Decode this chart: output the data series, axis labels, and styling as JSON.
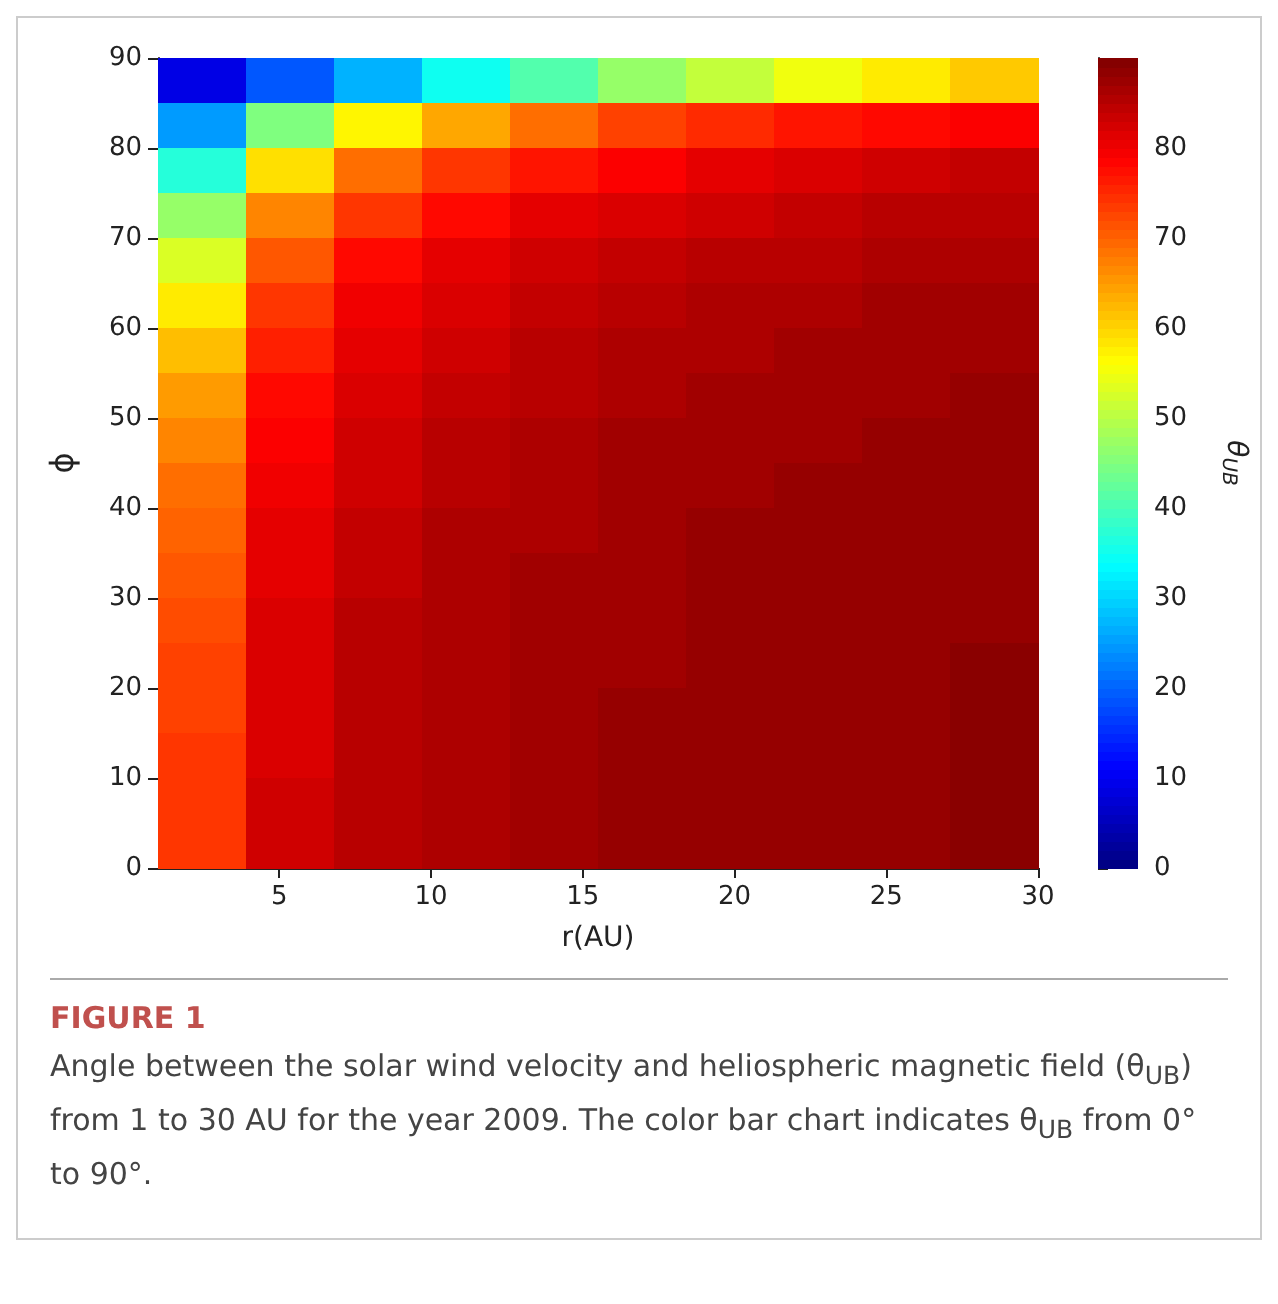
{
  "chart_data": {
    "type": "heatmap",
    "xlabel": "r(AU)",
    "ylabel": "ϕ",
    "clabel": "θ$_{UB}$",
    "annotations": [
      "FIGURE 1",
      "Angle between the solar wind velocity and heliospheric magnetic field (θ$_{UB}$) from 1 to 30 AU for the year 2009. The color bar chart indicates θ$_{UB}$ from 0° to 90°."
    ],
    "xlim": [
      1,
      30
    ],
    "xticks": [
      5,
      10,
      15,
      20,
      25,
      30
    ],
    "ylim": [
      0,
      90
    ],
    "yticks": [
      0,
      10,
      20,
      30,
      40,
      50,
      60,
      70,
      80,
      90
    ],
    "clim": [
      0,
      90
    ],
    "cticks": [
      0,
      10,
      20,
      30,
      40,
      50,
      60,
      70,
      80
    ],
    "colors": [
      "#00007f",
      "#0000ff",
      "#007fff",
      "#00ffff",
      "#7fff7f",
      "#ffff00",
      "#ff7f00",
      "#ff0000",
      "#7f0000"
    ],
    "grid": false,
    "cells": [
      [
        9,
        19,
        27,
        35,
        41,
        47,
        51,
        55,
        58,
        61
      ],
      [
        25,
        45,
        57,
        64,
        69,
        73,
        75,
        77,
        78,
        79
      ],
      [
        37,
        59,
        69,
        74,
        77,
        79,
        81,
        82,
        83,
        84
      ],
      [
        47,
        67,
        74,
        78,
        81,
        82,
        83,
        84,
        85,
        85
      ],
      [
        53,
        71,
        78,
        81,
        83,
        84,
        85,
        85,
        86,
        86
      ],
      [
        58,
        74,
        80,
        82,
        84,
        85,
        86,
        86,
        87,
        87
      ],
      [
        62,
        76,
        81,
        83,
        85,
        86,
        86,
        87,
        87,
        87
      ],
      [
        65,
        78,
        82,
        84,
        85,
        86,
        87,
        87,
        87,
        88
      ],
      [
        67,
        79,
        83,
        85,
        86,
        87,
        87,
        87,
        88,
        88
      ],
      [
        69,
        80,
        83,
        85,
        86,
        87,
        87,
        88,
        88,
        88
      ],
      [
        70,
        81,
        84,
        86,
        86,
        87,
        88,
        88,
        88,
        88
      ],
      [
        71,
        81,
        84,
        86,
        87,
        87,
        88,
        88,
        88,
        88
      ],
      [
        72,
        82,
        85,
        86,
        87,
        87,
        88,
        88,
        88,
        88
      ],
      [
        73,
        82,
        85,
        86,
        87,
        87,
        88,
        88,
        88,
        89
      ],
      [
        73,
        82,
        85,
        86,
        87,
        88,
        88,
        88,
        88,
        89
      ],
      [
        74,
        82,
        85,
        86,
        87,
        88,
        88,
        88,
        88,
        89
      ],
      [
        74,
        83,
        85,
        86,
        87,
        88,
        88,
        88,
        88,
        89
      ],
      [
        74,
        83,
        85,
        86,
        87,
        88,
        88,
        88,
        88,
        89
      ]
    ]
  }
}
